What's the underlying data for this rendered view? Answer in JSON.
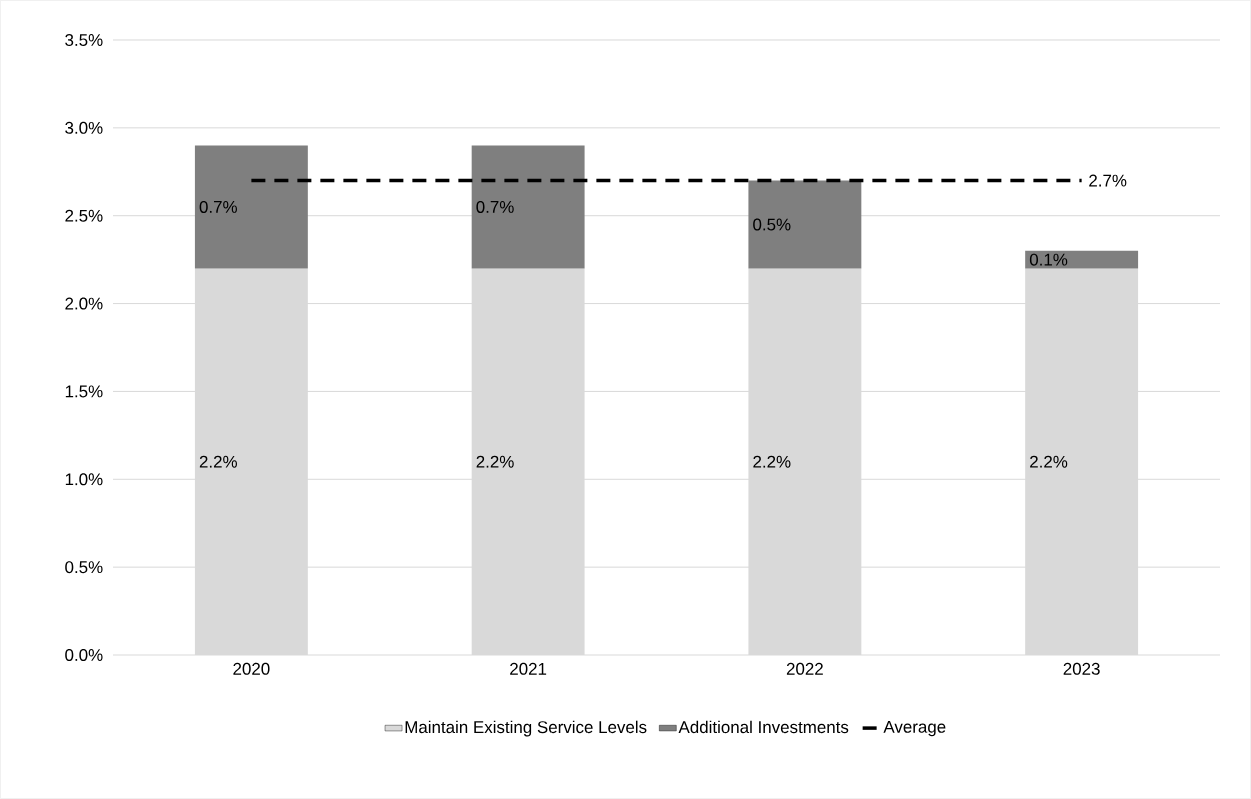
{
  "chart_data": {
    "type": "bar",
    "stacked": true,
    "categories": [
      "2020",
      "2021",
      "2022",
      "2023"
    ],
    "series": [
      {
        "name": "Maintain Existing Service Levels",
        "color": "#d9d9d9",
        "values": [
          2.2,
          2.2,
          2.2,
          2.2
        ],
        "value_labels": [
          "2.2%",
          "2.2%",
          "2.2%",
          "2.2%"
        ]
      },
      {
        "name": "Additional Investments",
        "color": "#7f7f7f",
        "values": [
          0.7,
          0.7,
          0.5,
          0.1
        ],
        "value_labels": [
          "0.7%",
          "0.7%",
          "0.5%",
          "0.1%"
        ]
      },
      {
        "name": "Average",
        "type": "line",
        "color": "#000000",
        "line_style": "dashed",
        "marker": "none",
        "values": [
          2.7,
          2.7,
          2.7,
          2.7
        ],
        "value_labels": [
          null,
          null,
          null,
          "2.7%"
        ]
      }
    ],
    "ylim": [
      0,
      3.5
    ],
    "yticks": [
      {
        "value": 0,
        "label": "0.0%"
      },
      {
        "value": 0.5,
        "label": "0.5%"
      },
      {
        "value": 1,
        "label": "1.0%"
      },
      {
        "value": 1.5,
        "label": "1.5%"
      },
      {
        "value": 2,
        "label": "2.0%"
      },
      {
        "value": 2.5,
        "label": "2.5%"
      },
      {
        "value": 3,
        "label": "3.0%"
      },
      {
        "value": 3.5,
        "label": "3.5%"
      }
    ],
    "grid": "y",
    "legend": "bottom"
  }
}
